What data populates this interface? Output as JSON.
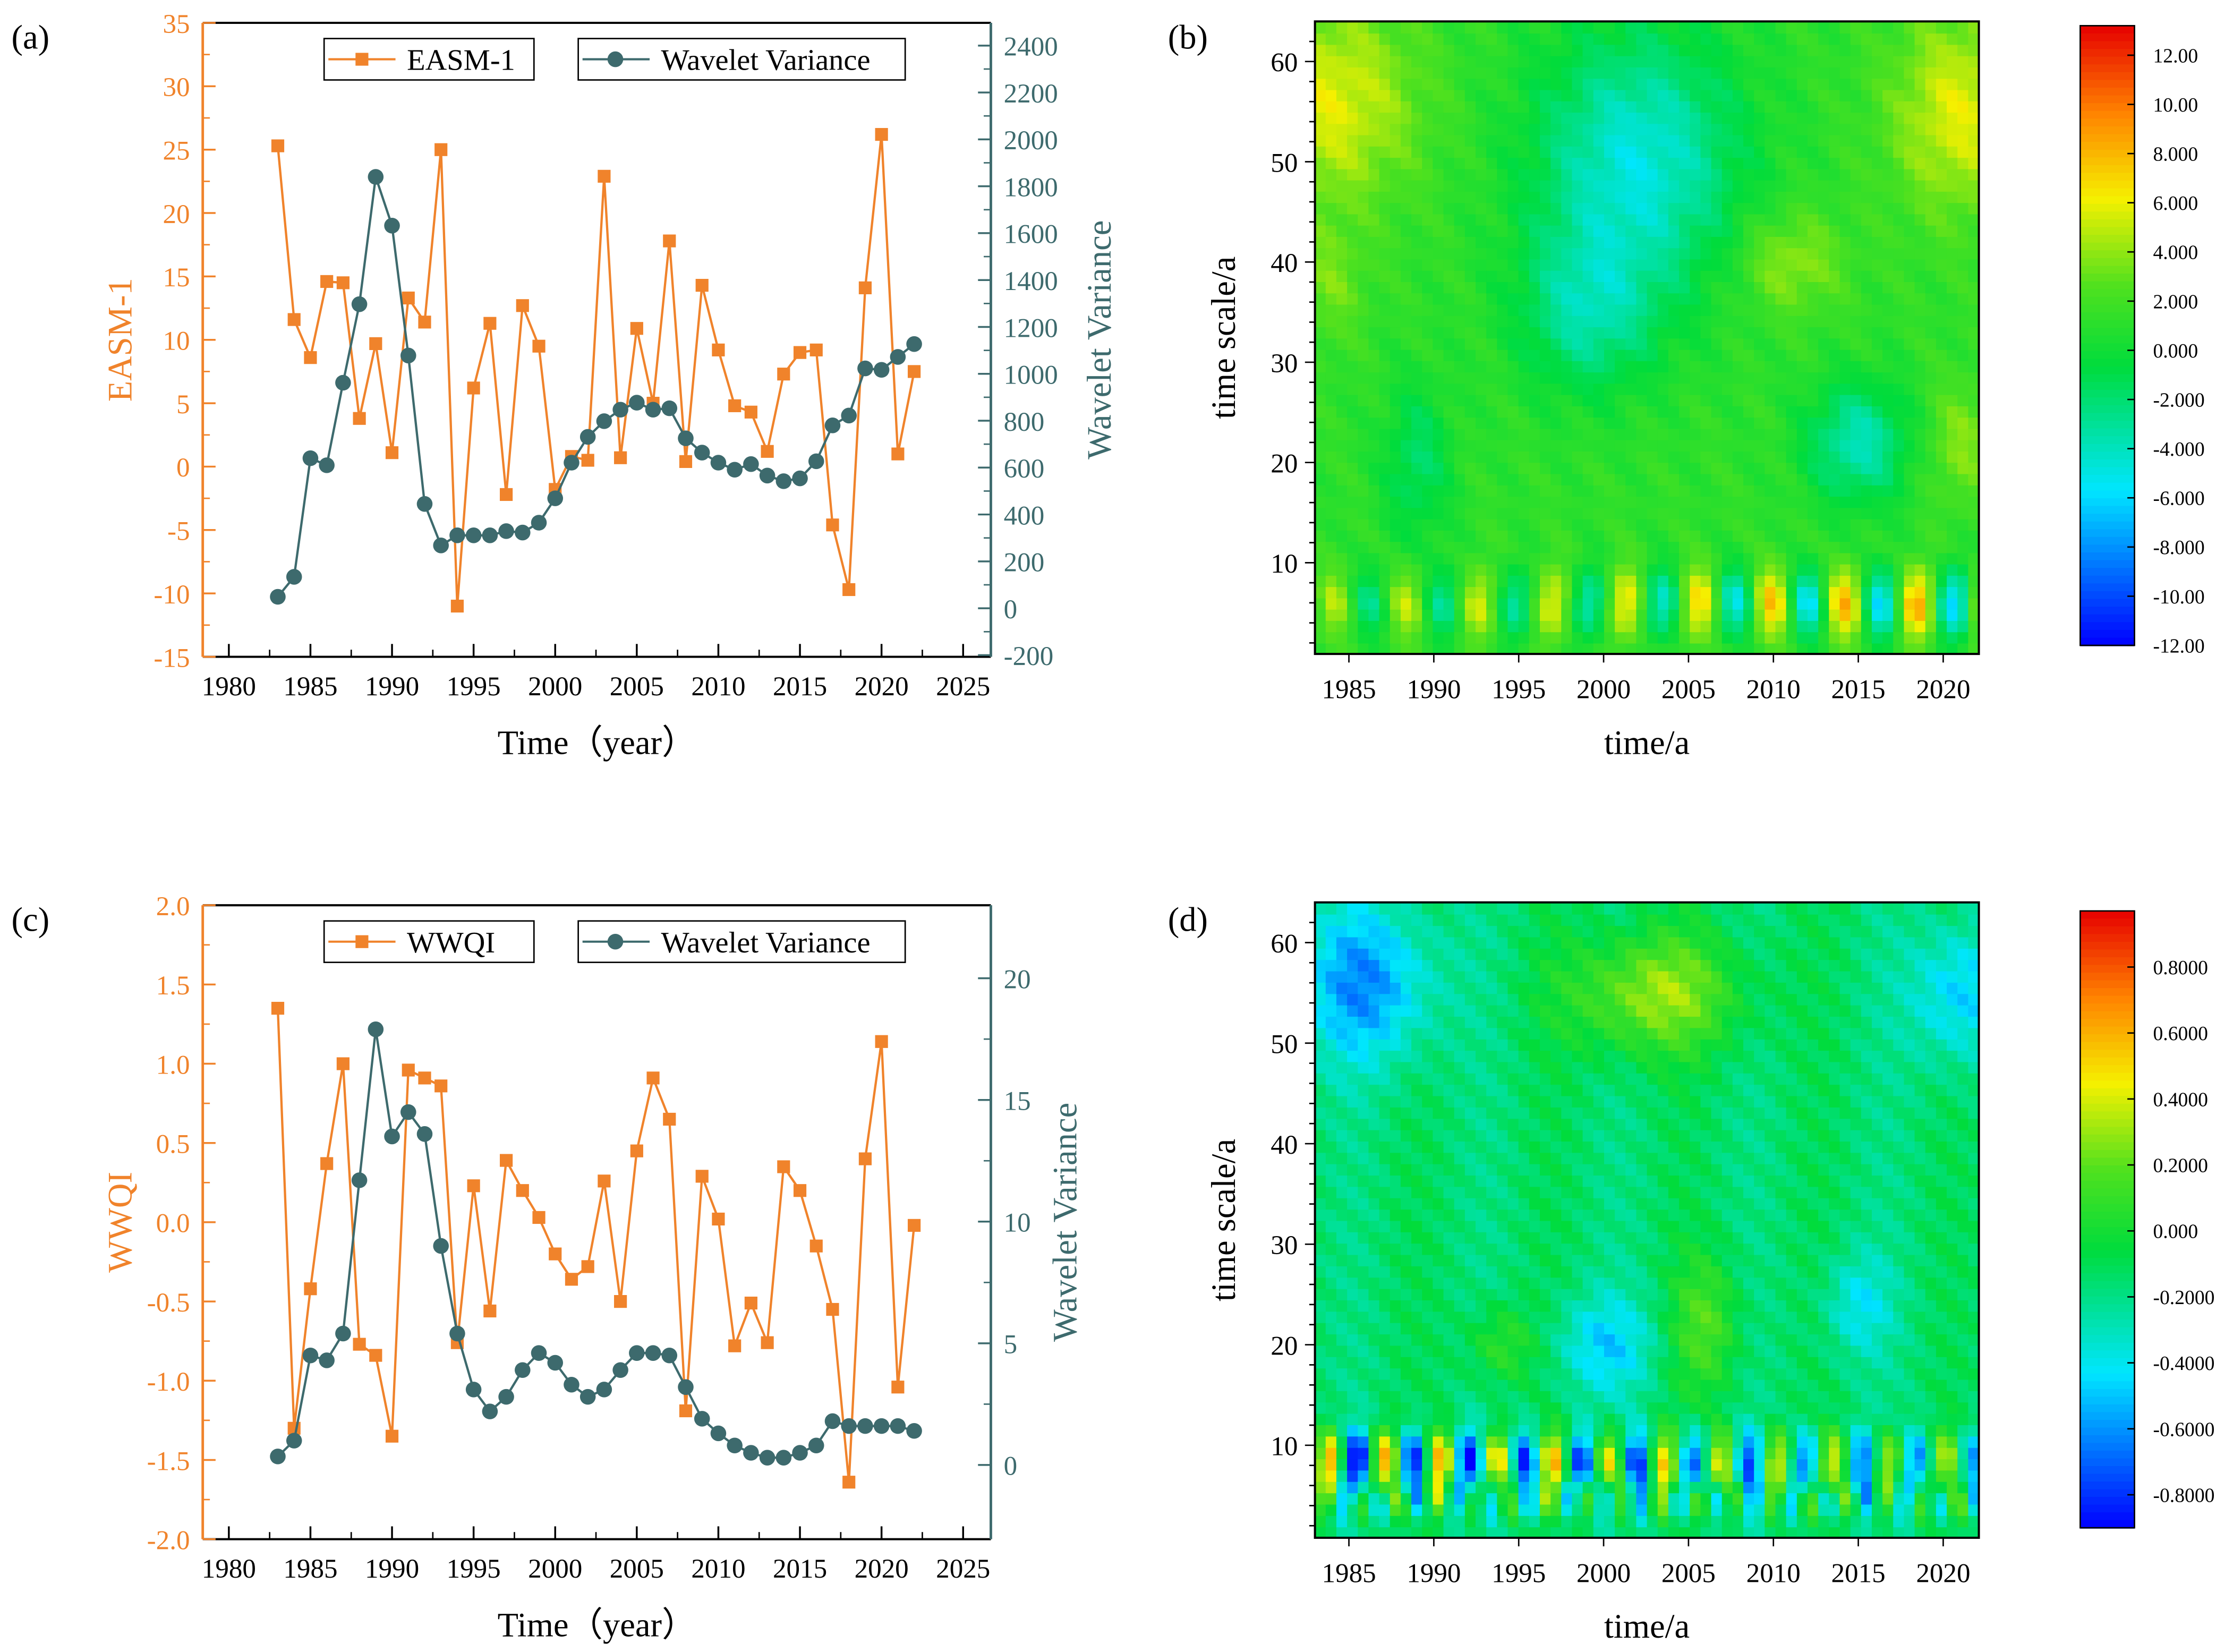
{
  "colors": {
    "orange": "#f0832b",
    "teal": "#3d6a6d",
    "axis": "#000000"
  },
  "chart_data": [
    {
      "panel": "(a)",
      "type": "line",
      "x": [
        1983,
        1984,
        1985,
        1986,
        1987,
        1988,
        1989,
        1990,
        1991,
        1992,
        1993,
        1994,
        1995,
        1996,
        1997,
        1998,
        1999,
        2000,
        2001,
        2002,
        2003,
        2004,
        2005,
        2006,
        2007,
        2008,
        2009,
        2010,
        2011,
        2012,
        2013,
        2014,
        2015,
        2016,
        2017,
        2018,
        2019,
        2020,
        2021,
        2022
      ],
      "xlabel": "Time（year）",
      "xlim": [
        1978.4,
        2026.7
      ],
      "xticks": [
        1980,
        1985,
        1990,
        1995,
        2000,
        2005,
        2010,
        2015,
        2020,
        2025
      ],
      "series": [
        {
          "name": "EASM-1",
          "axis": "left",
          "marker": "square",
          "values": [
            25.3,
            11.6,
            8.6,
            14.6,
            14.5,
            3.8,
            9.7,
            1.1,
            13.3,
            11.4,
            25.0,
            -11.0,
            6.2,
            11.3,
            -2.2,
            12.7,
            9.5,
            -1.8,
            0.8,
            0.5,
            22.9,
            0.7,
            10.9,
            5.0,
            17.8,
            0.4,
            14.3,
            9.2,
            4.8,
            4.3,
            1.2,
            7.3,
            9.0,
            9.2,
            -4.6,
            -9.7,
            14.1,
            26.2,
            1.0,
            7.5
          ]
        },
        {
          "name": "Wavelet Variance",
          "axis": "right",
          "marker": "circle",
          "values": [
            49,
            134,
            640,
            610,
            962,
            1297,
            1840,
            1632,
            1078,
            445,
            268,
            311,
            311,
            311,
            329,
            323,
            365,
            469,
            621,
            731,
            798,
            847,
            877,
            847,
            853,
            725,
            664,
            621,
            591,
            615,
            566,
            542,
            554,
            627,
            780,
            822,
            1023,
            1017,
            1072,
            1127
          ]
        }
      ],
      "ylabel_left": "EASM-1",
      "ylim_left": [
        -15,
        35
      ],
      "yticks_left": [
        -15,
        -10,
        -5,
        0,
        5,
        10,
        15,
        20,
        25,
        30,
        35
      ],
      "ylabel_right": "Wavelet Variance",
      "ylim_right": [
        -207,
        2497
      ],
      "yticks_right": [
        -200,
        0,
        200,
        400,
        600,
        800,
        1000,
        1200,
        1400,
        1600,
        1800,
        2000,
        2200,
        2400
      ],
      "legend": "top"
    },
    {
      "panel": "(b)",
      "type": "heatmap",
      "xlabel": "time/a",
      "ylabel": "time scale/a",
      "xlim": [
        1983,
        2022.1
      ],
      "ylim": [
        0.9,
        64
      ],
      "xticks": [
        1985,
        1990,
        1995,
        2000,
        2005,
        2010,
        2015,
        2020
      ],
      "yticks": [
        10,
        20,
        30,
        40,
        50,
        60
      ],
      "zlim": [
        -12,
        13.2
      ],
      "colorbar_ticks": [
        "12.00",
        "10.00",
        "8.000",
        "6.000",
        "4.000",
        "2.000",
        "0.000",
        "-2.000",
        "-4.000",
        "-6.000",
        "-8.000",
        "-10.00",
        "-12.00"
      ]
    },
    {
      "panel": "(c)",
      "type": "line",
      "x": [
        1983,
        1984,
        1985,
        1986,
        1987,
        1988,
        1989,
        1990,
        1991,
        1992,
        1993,
        1994,
        1995,
        1996,
        1997,
        1998,
        1999,
        2000,
        2001,
        2002,
        2003,
        2004,
        2005,
        2006,
        2007,
        2008,
        2009,
        2010,
        2011,
        2012,
        2013,
        2014,
        2015,
        2016,
        2017,
        2018,
        2019,
        2020,
        2021,
        2022
      ],
      "xlabel": "Time（year）",
      "xlim": [
        1978.4,
        2026.7
      ],
      "xticks": [
        1980,
        1985,
        1990,
        1995,
        2000,
        2005,
        2010,
        2015,
        2020,
        2025
      ],
      "series": [
        {
          "name": "WWQI",
          "axis": "left",
          "marker": "square",
          "values": [
            1.35,
            -1.3,
            -0.42,
            0.37,
            1.0,
            -0.77,
            -0.84,
            -1.35,
            0.96,
            0.91,
            0.86,
            -0.76,
            0.23,
            -0.56,
            0.39,
            0.2,
            0.03,
            -0.2,
            -0.36,
            -0.28,
            0.26,
            -0.5,
            0.45,
            0.91,
            0.65,
            -1.19,
            0.29,
            0.02,
            -0.78,
            -0.51,
            -0.76,
            0.35,
            0.2,
            -0.15,
            -0.55,
            -1.64,
            0.4,
            1.14,
            -1.04,
            -0.02
          ]
        },
        {
          "name": "Wavelet Variance",
          "axis": "right",
          "marker": "circle",
          "values": [
            0.35,
            1.0,
            4.5,
            4.3,
            5.4,
            11.7,
            17.9,
            13.5,
            14.5,
            13.6,
            9.0,
            5.4,
            3.1,
            2.2,
            2.8,
            3.9,
            4.6,
            4.2,
            3.3,
            2.8,
            3.1,
            3.9,
            4.6,
            4.6,
            4.5,
            3.2,
            1.9,
            1.3,
            0.8,
            0.5,
            0.3,
            0.3,
            0.5,
            0.8,
            1.8,
            1.6,
            1.6,
            1.6,
            1.6,
            1.4
          ]
        }
      ],
      "ylabel_left": "WWQI",
      "ylim_left": [
        -2.0,
        2.0
      ],
      "yticks_left": [
        "-2.0",
        "-1.5",
        "-1.0",
        "-0.5",
        "0.0",
        "0.5",
        "1.0",
        "1.5",
        "2.0"
      ],
      "ylabel_right": "Wavelet Variance",
      "ylim_right": [
        -3.05,
        23.0
      ],
      "yticks_right": [
        0,
        5,
        10,
        15,
        20
      ],
      "legend": "top"
    },
    {
      "panel": "(d)",
      "type": "heatmap",
      "xlabel": "time/a",
      "ylabel": "time scale/a",
      "xlim": [
        1983,
        2022.1
      ],
      "ylim": [
        0.8,
        64
      ],
      "xticks": [
        1985,
        1990,
        1995,
        2000,
        2005,
        2010,
        2015,
        2020
      ],
      "yticks": [
        10,
        20,
        30,
        40,
        50,
        60
      ],
      "zlim": [
        -0.9,
        0.97
      ],
      "colorbar_ticks": [
        "0.8000",
        "0.6000",
        "0.4000",
        "0.2000",
        "0.000",
        "-0.2000",
        "-0.4000",
        "-0.6000",
        "-0.8000"
      ]
    }
  ]
}
